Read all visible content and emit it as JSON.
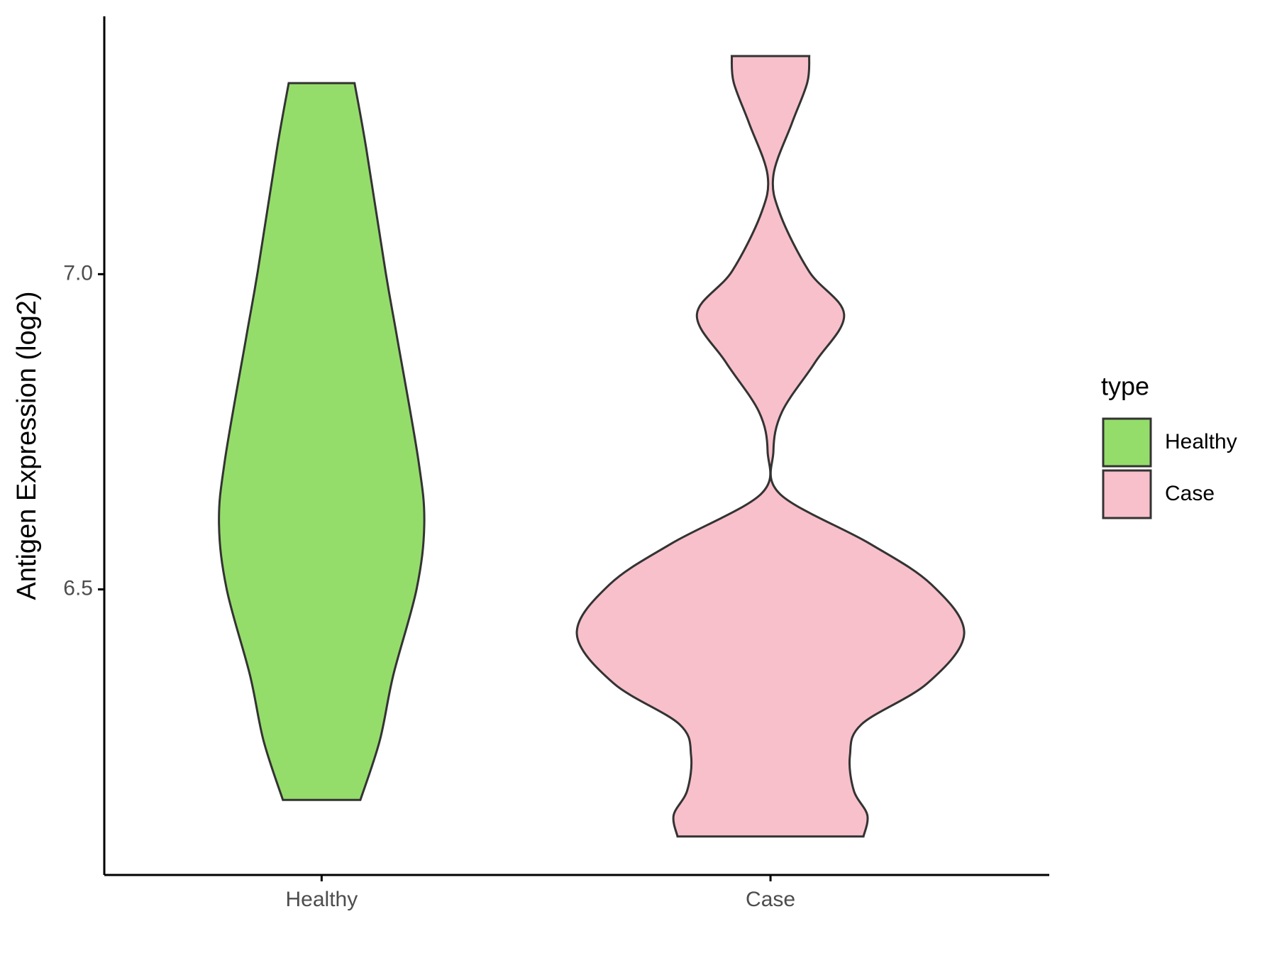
{
  "chart_data": {
    "type": "violin",
    "y_label": "Antigen Expression (log2)",
    "legend_title": "type",
    "categories": [
      "Healthy",
      "Case"
    ],
    "ylim": [
      6.047,
      7.409
    ],
    "yticks": [
      {
        "value": 6.5,
        "label": "6.5"
      },
      {
        "value": 7,
        "label": "7.0"
      }
    ],
    "series": [
      {
        "name": "Healthy",
        "color": "#95dd6b",
        "values": [
          7.303,
          7.2,
          7.004,
          6.899,
          6.704,
          6.604,
          6.5,
          6.364,
          6.26,
          6.166
        ],
        "widths": [
          0.17,
          0.23,
          0.33,
          0.39,
          0.5,
          0.53,
          0.49,
          0.37,
          0.3,
          0.2
        ]
      },
      {
        "name": "Case",
        "color": "#f8c0cb",
        "values": [
          7.346,
          7.304,
          7.239,
          7.157,
          7.095,
          7.004,
          6.936,
          6.86,
          6.782,
          6.719,
          6.651,
          6.573,
          6.508,
          6.43,
          6.351,
          6.286,
          6.236,
          6.181,
          6.142,
          6.108
        ],
        "widths": [
          0.2,
          0.19,
          0.11,
          0.015,
          0.05,
          0.2,
          0.38,
          0.23,
          0.06,
          0.015,
          0.05,
          0.51,
          0.83,
          1,
          0.81,
          0.47,
          0.41,
          0.43,
          0.5,
          0.48
        ]
      }
    ]
  }
}
